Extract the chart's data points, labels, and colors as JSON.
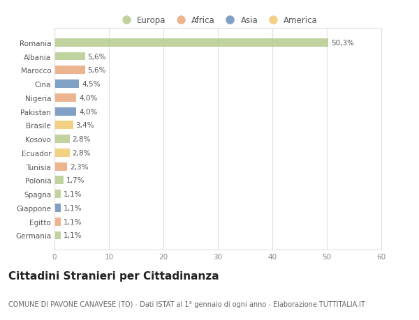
{
  "countries": [
    "Romania",
    "Albania",
    "Marocco",
    "Cina",
    "Nigeria",
    "Pakistan",
    "Brasile",
    "Kosovo",
    "Ecuador",
    "Tunisia",
    "Polonia",
    "Spagna",
    "Giappone",
    "Egitto",
    "Germania"
  ],
  "values": [
    50.3,
    5.6,
    5.6,
    4.5,
    4.0,
    4.0,
    3.4,
    2.8,
    2.8,
    2.3,
    1.7,
    1.1,
    1.1,
    1.1,
    1.1
  ],
  "labels": [
    "50,3%",
    "5,6%",
    "5,6%",
    "4,5%",
    "4,0%",
    "4,0%",
    "3,4%",
    "2,8%",
    "2,8%",
    "2,3%",
    "1,7%",
    "1,1%",
    "1,1%",
    "1,1%",
    "1,1%"
  ],
  "continents": [
    "Europa",
    "Europa",
    "Africa",
    "Asia",
    "Africa",
    "Asia",
    "America",
    "Europa",
    "America",
    "Africa",
    "Europa",
    "Europa",
    "Asia",
    "Africa",
    "Europa"
  ],
  "colors": {
    "Europa": "#b5cc8e",
    "Africa": "#e9a87c",
    "Asia": "#6b8fbb",
    "America": "#f0c96e"
  },
  "legend_order": [
    "Europa",
    "Africa",
    "Asia",
    "America"
  ],
  "xlim": [
    0,
    60
  ],
  "xticks": [
    0,
    10,
    20,
    30,
    40,
    50,
    60
  ],
  "background_color": "#ffffff",
  "plot_bg_color": "#ffffff",
  "grid_color": "#e0e0e0",
  "title": "Cittadini Stranieri per Cittadinanza",
  "subtitle": "COMUNE DI PAVONE CANAVESE (TO) - Dati ISTAT al 1° gennaio di ogni anno - Elaborazione TUTTITALIA.IT",
  "title_fontsize": 11,
  "subtitle_fontsize": 7,
  "label_fontsize": 7.5,
  "tick_fontsize": 7.5,
  "legend_fontsize": 8.5
}
